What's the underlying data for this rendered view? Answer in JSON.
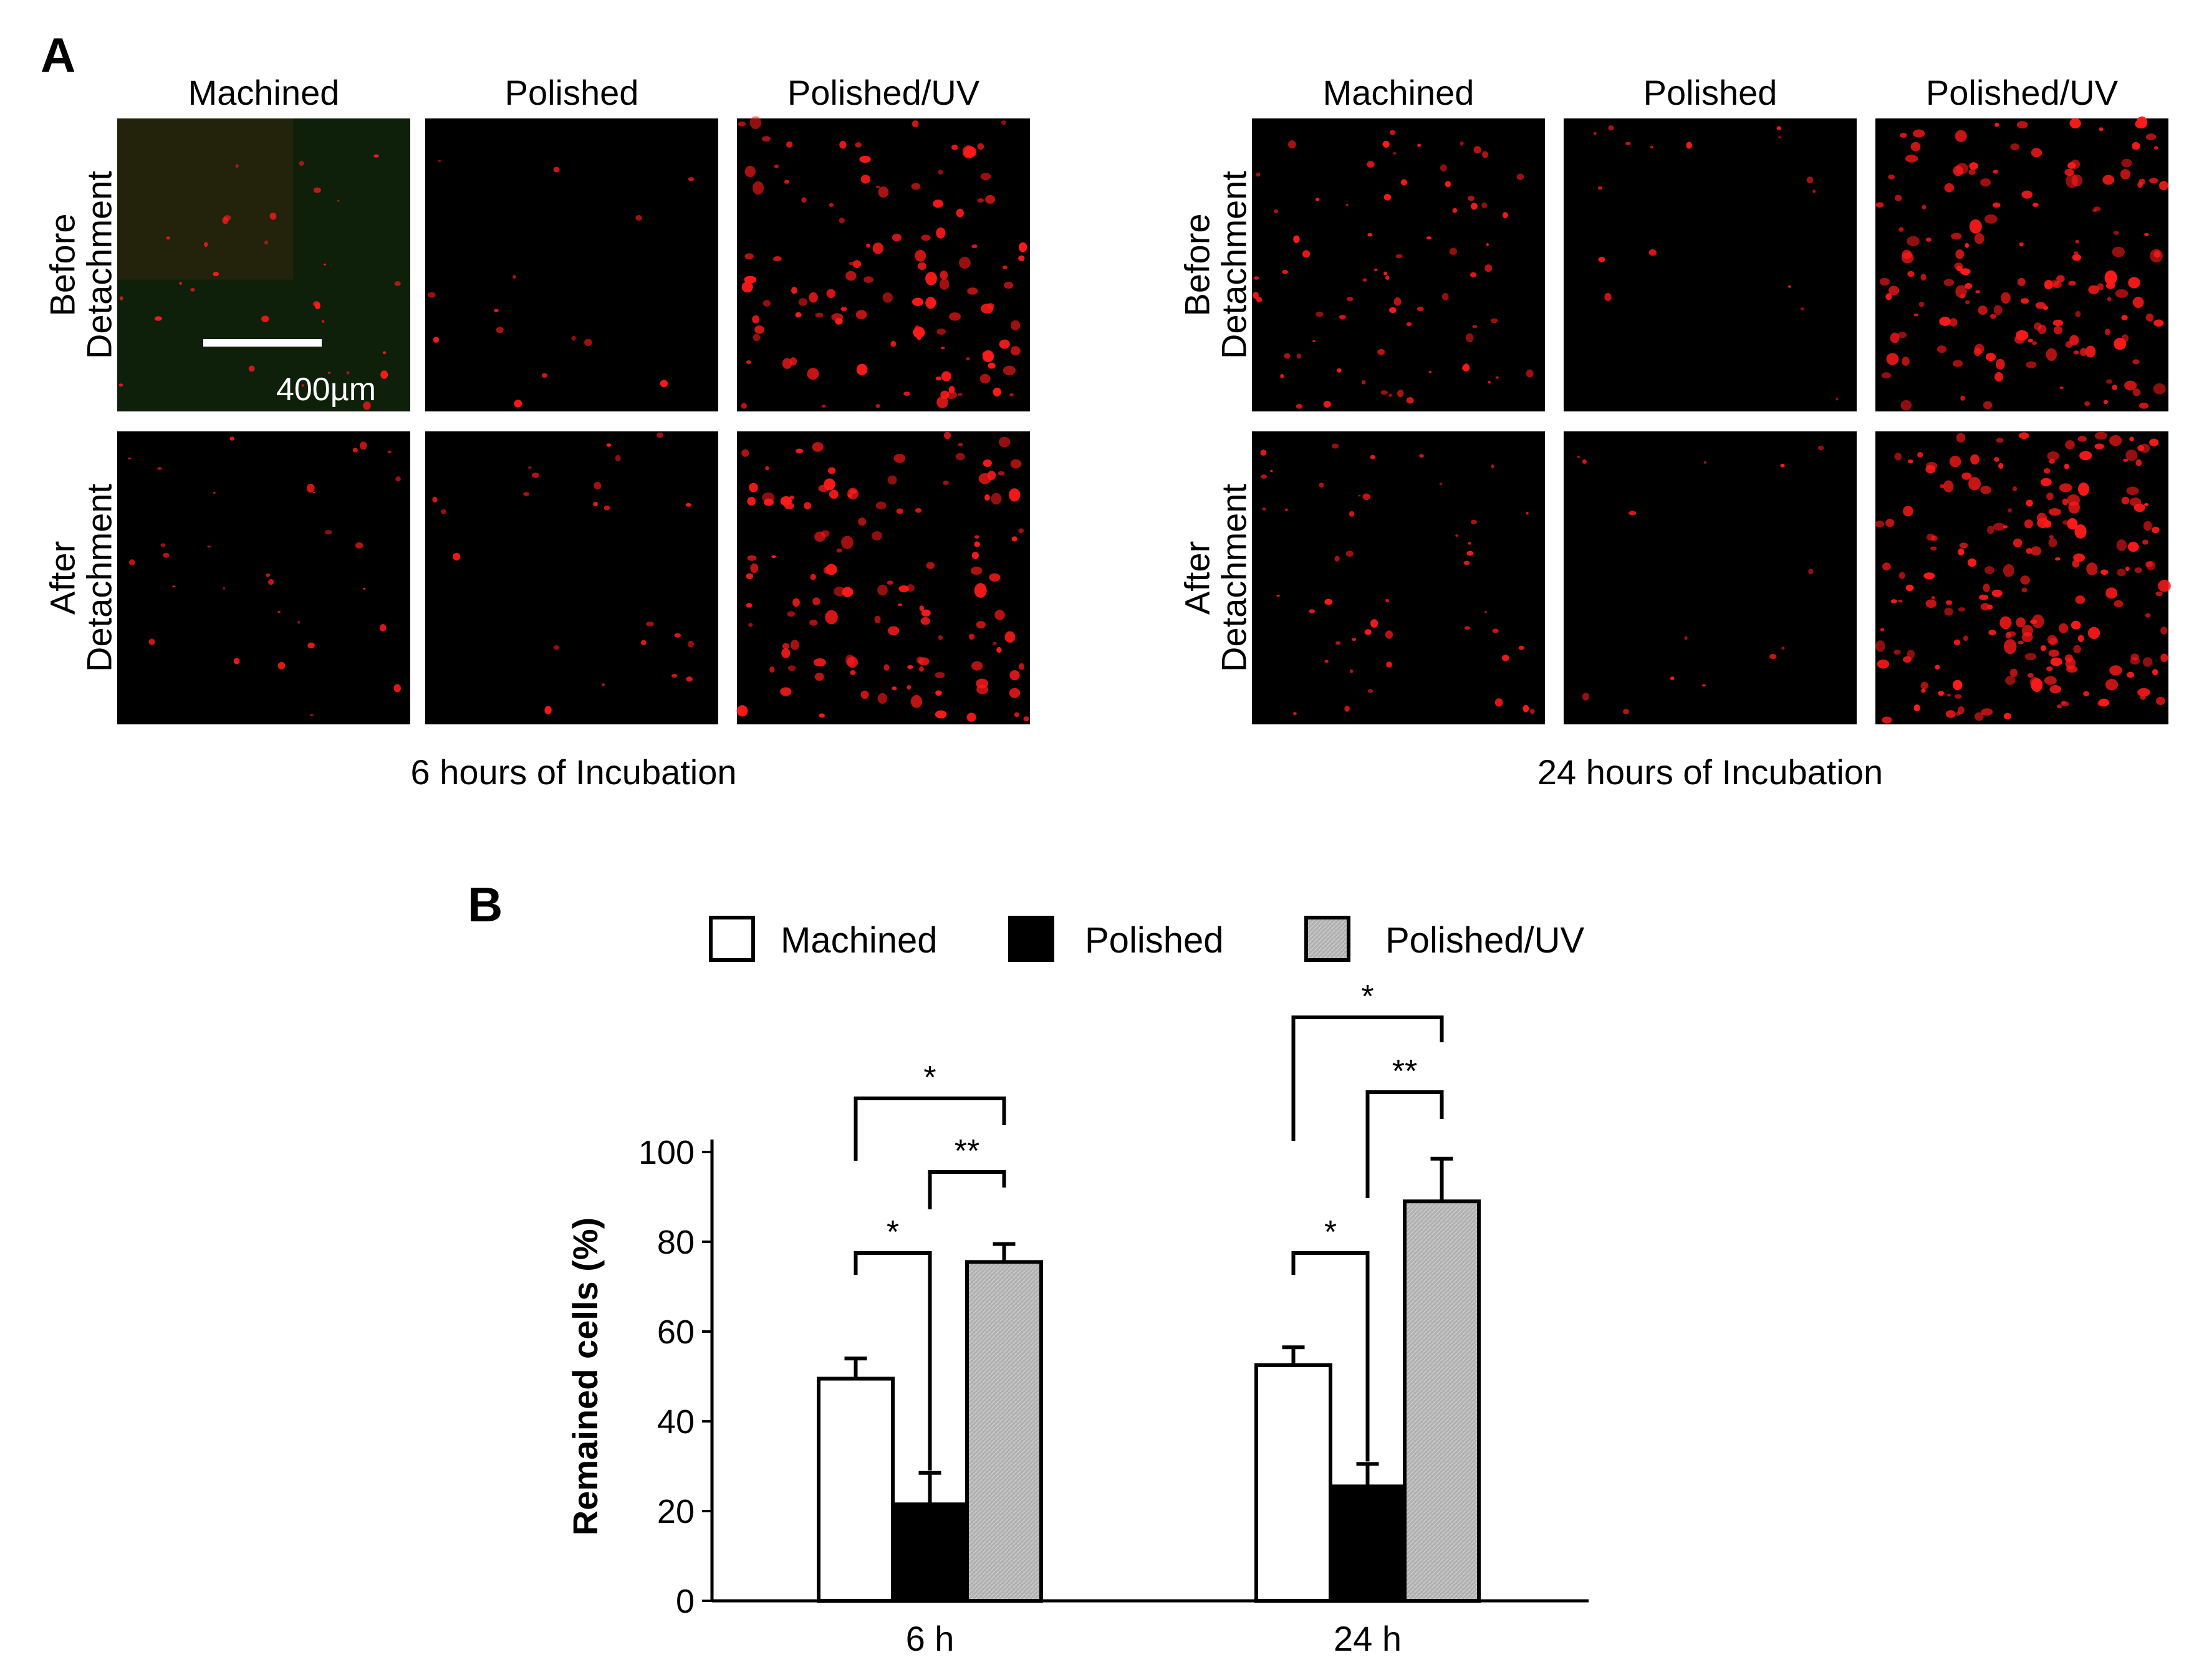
{
  "panel_a": {
    "label": "A",
    "column_labels": [
      "Machined",
      "Polished",
      "Polished/UV"
    ],
    "row_labels": [
      {
        "line1": "Before",
        "line2": "Detachment"
      },
      {
        "line1": "After",
        "line2": "Detachment"
      }
    ],
    "scale_bar_text": "400µm",
    "groups": [
      {
        "caption": "6 hours of Incubation",
        "density": [
          [
            30,
            14,
            110
          ],
          [
            30,
            22,
            120
          ]
        ]
      },
      {
        "caption": "24 hours of Incubation",
        "density": [
          [
            70,
            16,
            150
          ],
          [
            45,
            14,
            190
          ]
        ]
      }
    ],
    "colors": {
      "background": "#000000",
      "cell": "#ff1a1a",
      "scale_bar": "#ffffff"
    }
  },
  "panel_b": {
    "label": "B",
    "significance": {
      "single": "*",
      "double": "**"
    }
  },
  "chart_data": {
    "type": "bar",
    "title": "",
    "xlabel": "",
    "ylabel": "Remained cells (%)",
    "categories": [
      "6 h",
      "24 h"
    ],
    "ylim": [
      0,
      100
    ],
    "yticks": [
      0,
      20,
      40,
      60,
      80,
      100
    ],
    "legend_position": "top",
    "series": [
      {
        "name": "Machined",
        "color": "#ffffff",
        "values": [
          49.5,
          52.5
        ],
        "errors": [
          4.5,
          4
        ]
      },
      {
        "name": "Polished",
        "color": "#000000",
        "values": [
          21.5,
          25.5
        ],
        "errors": [
          7,
          5
        ]
      },
      {
        "name": "Polished/UV",
        "color": "#b3b3b3",
        "values": [
          75.5,
          89
        ],
        "errors": [
          4,
          9.5
        ]
      }
    ]
  }
}
